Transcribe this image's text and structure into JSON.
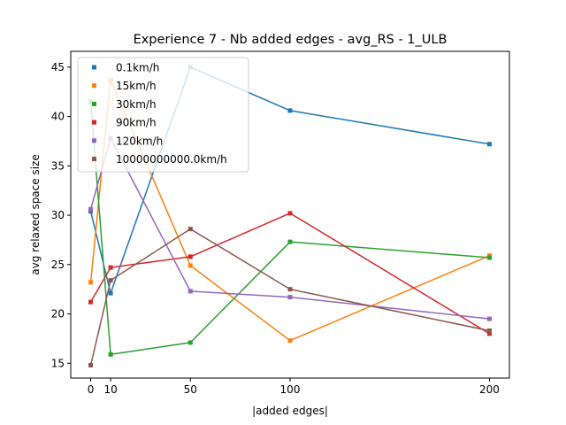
{
  "chart_data": {
    "type": "line",
    "title": "Experience 7 - Nb added edges - avg_RS - 1_ULB",
    "xlabel": "|added edges|",
    "ylabel": "avg relaxed space size",
    "x": [
      0,
      10,
      50,
      100,
      200
    ],
    "x_ticks": [
      0,
      10,
      50,
      100,
      200
    ],
    "y_ticks": [
      15,
      20,
      25,
      30,
      35,
      40,
      45
    ],
    "xlim": [
      -10,
      210
    ],
    "ylim": [
      13.5,
      46.6
    ],
    "grid": false,
    "legend_position": "upper-left",
    "series": [
      {
        "name": "0.1km/h",
        "color": "#1f77b4",
        "values": [
          30.4,
          22.1,
          45.0,
          40.6,
          37.2
        ]
      },
      {
        "name": "15km/h",
        "color": "#ff7f0e",
        "values": [
          23.2,
          43.7,
          24.9,
          17.3,
          25.9
        ]
      },
      {
        "name": "30km/h",
        "color": "#2ca02c",
        "values": [
          41.5,
          15.9,
          17.1,
          27.3,
          25.7
        ]
      },
      {
        "name": "90km/h",
        "color": "#d62728",
        "values": [
          21.2,
          24.7,
          25.8,
          30.2,
          18.0
        ]
      },
      {
        "name": "120km/h",
        "color": "#9467bd",
        "values": [
          30.6,
          37.8,
          22.3,
          21.7,
          19.5
        ]
      },
      {
        "name": "10000000000.0km/h",
        "color": "#8c564b",
        "values": [
          14.8,
          23.4,
          28.6,
          22.5,
          18.3
        ]
      }
    ]
  }
}
